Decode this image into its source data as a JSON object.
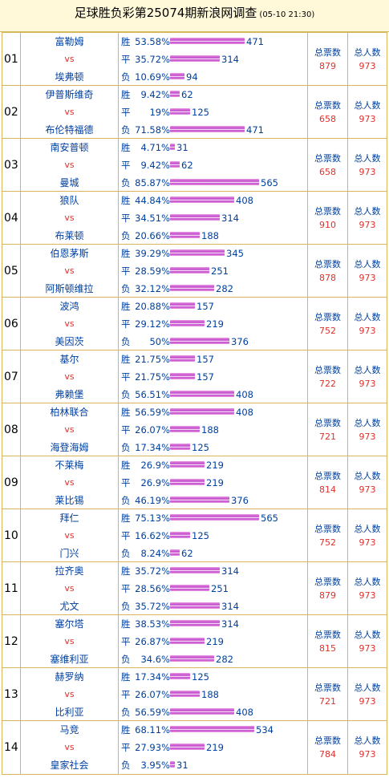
{
  "header": {
    "title": "足球胜负彩第25074期新浪网调查",
    "datetime": "(05-10 21:30)"
  },
  "labels": {
    "total_votes": "总票数",
    "total_people": "总人数",
    "vs": "vs",
    "win": "胜",
    "draw": "平",
    "lose": "负"
  },
  "max_count": 565,
  "matches": [
    {
      "num": "01",
      "home": "富勒姆",
      "away": "埃弗顿",
      "win_pct": "53.58%",
      "win": 471,
      "draw_pct": "35.72%",
      "draw": 314,
      "lose_pct": "10.69%",
      "lose": 94,
      "total": "879",
      "people": "973"
    },
    {
      "num": "02",
      "home": "伊普斯维奇",
      "away": "布伦特福德",
      "win_pct": "9.42%",
      "win": 62,
      "draw_pct": "19%",
      "draw": 125,
      "lose_pct": "71.58%",
      "lose": 471,
      "total": "658",
      "people": "973"
    },
    {
      "num": "03",
      "home": "南安普顿",
      "away": "曼城",
      "win_pct": "4.71%",
      "win": 31,
      "draw_pct": "9.42%",
      "draw": 62,
      "lose_pct": "85.87%",
      "lose": 565,
      "total": "658",
      "people": "973"
    },
    {
      "num": "04",
      "home": "狼队",
      "away": "布莱顿",
      "win_pct": "44.84%",
      "win": 408,
      "draw_pct": "34.51%",
      "draw": 314,
      "lose_pct": "20.66%",
      "lose": 188,
      "total": "910",
      "people": "973"
    },
    {
      "num": "05",
      "home": "伯恩茅斯",
      "away": "阿斯顿维拉",
      "win_pct": "39.29%",
      "win": 345,
      "draw_pct": "28.59%",
      "draw": 251,
      "lose_pct": "32.12%",
      "lose": 282,
      "total": "878",
      "people": "973"
    },
    {
      "num": "06",
      "home": "波鸿",
      "away": "美因茨",
      "win_pct": "20.88%",
      "win": 157,
      "draw_pct": "29.12%",
      "draw": 219,
      "lose_pct": "50%",
      "lose": 376,
      "total": "752",
      "people": "973"
    },
    {
      "num": "07",
      "home": "基尔",
      "away": "弗赖堡",
      "win_pct": "21.75%",
      "win": 157,
      "draw_pct": "21.75%",
      "draw": 157,
      "lose_pct": "56.51%",
      "lose": 408,
      "total": "722",
      "people": "973"
    },
    {
      "num": "08",
      "home": "柏林联合",
      "away": "海登海姆",
      "win_pct": "56.59%",
      "win": 408,
      "draw_pct": "26.07%",
      "draw": 188,
      "lose_pct": "17.34%",
      "lose": 125,
      "total": "721",
      "people": "973"
    },
    {
      "num": "09",
      "home": "不莱梅",
      "away": "莱比锡",
      "win_pct": "26.9%",
      "win": 219,
      "draw_pct": "26.9%",
      "draw": 219,
      "lose_pct": "46.19%",
      "lose": 376,
      "total": "814",
      "people": "973"
    },
    {
      "num": "10",
      "home": "拜仁",
      "away": "门兴",
      "win_pct": "75.13%",
      "win": 565,
      "draw_pct": "16.62%",
      "draw": 125,
      "lose_pct": "8.24%",
      "lose": 62,
      "total": "752",
      "people": "973"
    },
    {
      "num": "11",
      "home": "拉齐奥",
      "away": "尤文",
      "win_pct": "35.72%",
      "win": 314,
      "draw_pct": "28.56%",
      "draw": 251,
      "lose_pct": "35.72%",
      "lose": 314,
      "total": "879",
      "people": "973"
    },
    {
      "num": "12",
      "home": "塞尔塔",
      "away": "塞维利亚",
      "win_pct": "38.53%",
      "win": 314,
      "draw_pct": "26.87%",
      "draw": 219,
      "lose_pct": "34.6%",
      "lose": 282,
      "total": "815",
      "people": "973"
    },
    {
      "num": "13",
      "home": "赫罗纳",
      "away": "比利亚",
      "win_pct": "17.34%",
      "win": 125,
      "draw_pct": "26.07%",
      "draw": 188,
      "lose_pct": "56.59%",
      "lose": 408,
      "total": "721",
      "people": "973"
    },
    {
      "num": "14",
      "home": "马竞",
      "away": "皇家社会",
      "win_pct": "68.11%",
      "win": 534,
      "draw_pct": "27.93%",
      "draw": 219,
      "lose_pct": "3.95%",
      "lose": 31,
      "total": "784",
      "people": "973"
    }
  ]
}
